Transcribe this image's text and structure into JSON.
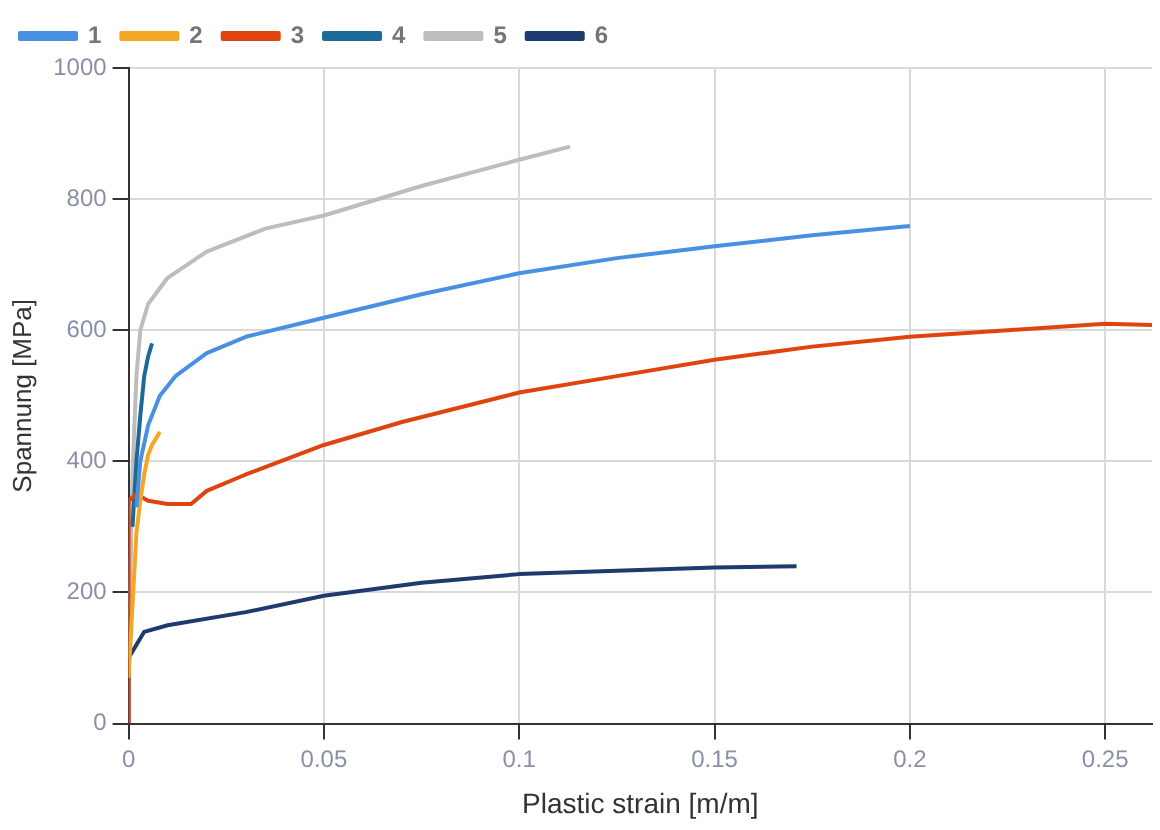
{
  "chart_data": {
    "type": "line",
    "xlabel": "Plastic strain [m/m]",
    "ylabel": "Spannung [MPa]",
    "xlim": [
      0,
      0.262
    ],
    "xticks": [
      0,
      0.05,
      0.1,
      0.15,
      0.2,
      0.25
    ],
    "ylim": [
      0,
      1000
    ],
    "yticks": [
      0,
      200,
      400,
      600,
      800,
      1000
    ],
    "grid": true,
    "legend": "top left",
    "marker": "none",
    "line_style": "solid",
    "series": [
      {
        "name": "1",
        "color": "#4a90e2",
        "x": [
          0.002,
          0.003,
          0.005,
          0.008,
          0.012,
          0.02,
          0.03,
          0.05,
          0.075,
          0.1,
          0.125,
          0.15,
          0.175,
          0.2
        ],
        "values": [
          330,
          400,
          455,
          500,
          530,
          565,
          590,
          619,
          655,
          687,
          710,
          728,
          745,
          759
        ]
      },
      {
        "name": "2",
        "color": "#f5a623",
        "x": [
          0,
          0.001,
          0.002,
          0.003,
          0.004,
          0.005,
          0.006,
          0.008
        ],
        "values": [
          70,
          180,
          290,
          340,
          380,
          410,
          425,
          445
        ]
      },
      {
        "name": "3",
        "color": "#e0440e",
        "x": [
          0,
          0,
          0.002,
          0.005,
          0.01,
          0.016,
          0.02,
          0.03,
          0.05,
          0.07,
          0.1,
          0.125,
          0.15,
          0.175,
          0.2,
          0.225,
          0.25,
          0.262
        ],
        "values": [
          0,
          340,
          350,
          340,
          335,
          335,
          355,
          380,
          425,
          460,
          505,
          530,
          555,
          575,
          590,
          600,
          610,
          608
        ]
      },
      {
        "name": "4",
        "color": "#1d6a96",
        "x": [
          0.001,
          0.002,
          0.003,
          0.004,
          0.005,
          0.006
        ],
        "values": [
          300,
          400,
          470,
          530,
          560,
          580
        ]
      },
      {
        "name": "5",
        "color": "#bdbdbd",
        "x": [
          0,
          0.001,
          0.002,
          0.003,
          0.005,
          0.01,
          0.02,
          0.035,
          0.05,
          0.075,
          0.1,
          0.113
        ],
        "values": [
          100,
          380,
          530,
          600,
          640,
          680,
          720,
          755,
          775,
          820,
          860,
          880
        ]
      },
      {
        "name": "6",
        "color": "#1f3a6e",
        "x": [
          0,
          0,
          0.004,
          0.01,
          0.03,
          0.05,
          0.075,
          0.1,
          0.125,
          0.15,
          0.171
        ],
        "values": [
          0,
          100,
          140,
          150,
          170,
          195,
          215,
          228,
          233,
          238,
          240
        ]
      }
    ]
  }
}
